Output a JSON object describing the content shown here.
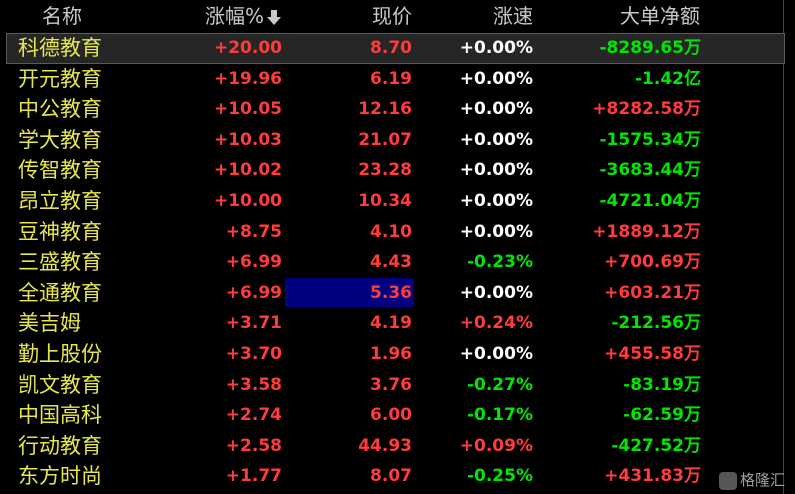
{
  "header": [
    "名称",
    "涨幅%",
    "现价",
    "涨速",
    "大单净额"
  ],
  "rows": [
    [
      "科德教育",
      "+20.00",
      "8.70",
      "+0.00%",
      "-8289.65万"
    ],
    [
      "开元教育",
      "+19.96",
      "6.19",
      "+0.00%",
      "-1.42亿"
    ],
    [
      "中公教育",
      "+10.05",
      "12.16",
      "+0.00%",
      "+8282.58万"
    ],
    [
      "学大教育",
      "+10.03",
      "21.07",
      "+0.00%",
      "-1575.34万"
    ],
    [
      "传智教育",
      "+10.02",
      "23.28",
      "+0.00%",
      "-3683.44万"
    ],
    [
      "昂立教育",
      "+10.00",
      "10.34",
      "+0.00%",
      "-4721.04万"
    ],
    [
      "豆神教育",
      "+8.75",
      "4.10",
      "+0.00%",
      "+1889.12万"
    ],
    [
      "三盛教育",
      "+6.99",
      "4.43",
      "-0.23%",
      "+700.69万"
    ],
    [
      "全通教育",
      "+6.99",
      "5.36",
      "+0.00%",
      "+603.21万"
    ],
    [
      "美吉姆",
      "+3.71",
      "4.19",
      "+0.24%",
      "-212.56万"
    ],
    [
      "勤上股份",
      "+3.70",
      "1.96",
      "+0.00%",
      "+455.58万"
    ],
    [
      "凯文教育",
      "+3.58",
      "3.76",
      "-0.27%",
      "-83.19万"
    ],
    [
      "中国高科",
      "+2.74",
      "6.00",
      "-0.17%",
      "-62.59万"
    ],
    [
      "行动教育",
      "+2.58",
      "44.93",
      "+0.09%",
      "-427.52万"
    ],
    [
      "东方时尚",
      "+1.77",
      "8.07",
      "-0.25%",
      "+431.83万"
    ]
  ],
  "watermark": "格隆汇"
}
